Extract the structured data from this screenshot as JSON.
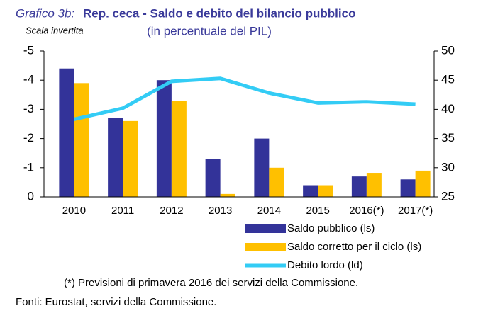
{
  "chart_data": {
    "type": "bar",
    "title_prefix": "Grafico 3b:",
    "title": "Rep. ceca - Saldo e debito del bilancio pubblico",
    "subtitle": "(in percentuale del PIL)",
    "axis_note": "Scala invertita",
    "categories": [
      "2010",
      "2011",
      "2012",
      "2013",
      "2014",
      "2015",
      "2016(*)",
      "2017(*)"
    ],
    "series": [
      {
        "name": "Saldo pubblico (ls)",
        "color": "#333399",
        "type": "bar",
        "values": [
          -4.4,
          -2.7,
          -4.0,
          -1.3,
          -2.0,
          -0.4,
          -0.7,
          -0.6
        ]
      },
      {
        "name": "Saldo corretto per il ciclo (ls)",
        "color": "#ffc000",
        "type": "bar",
        "values": [
          -3.9,
          -2.6,
          -3.3,
          -0.1,
          -1.0,
          -0.4,
          -0.8,
          -0.9
        ]
      },
      {
        "name": "Debito lordo (ld)",
        "color": "#33ccf5",
        "type": "line",
        "axis": "y2",
        "values": [
          38.3,
          40.2,
          44.8,
          45.3,
          42.8,
          41.1,
          41.3,
          40.9
        ]
      }
    ],
    "ylim": [
      0,
      -5
    ],
    "yticks": [
      0,
      -1,
      -2,
      -3,
      -4,
      -5
    ],
    "y2lim": [
      25,
      50
    ],
    "y2ticks": [
      25,
      30,
      35,
      40,
      45,
      50
    ],
    "note": "(*) Previsioni di primavera 2016 dei servizi della Commissione.",
    "source": "Fonti: Eurostat, servizi della Commissione."
  }
}
